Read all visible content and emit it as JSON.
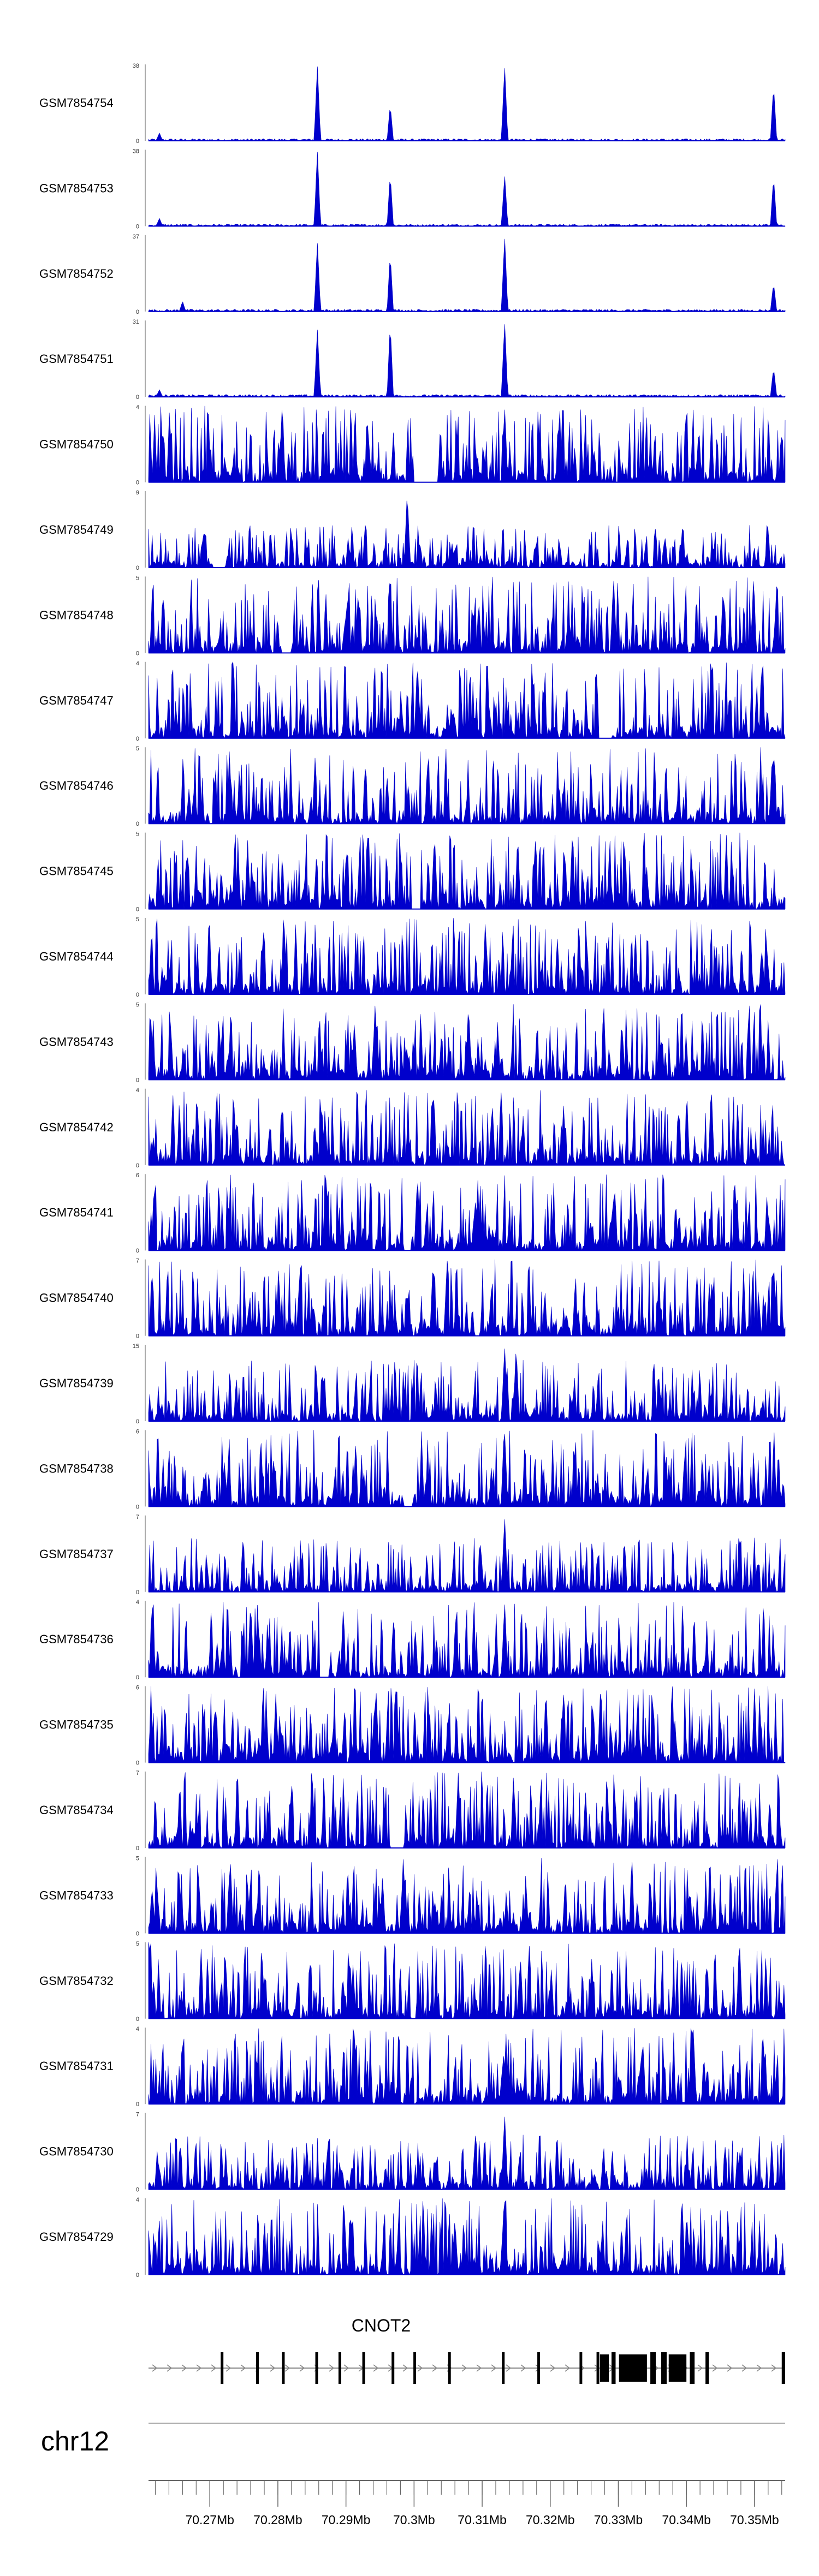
{
  "chart_data": {
    "type": "area",
    "title": "",
    "color": "#0000cc",
    "x_range_mb": [
      70.261,
      70.3545
    ],
    "tracks": [
      {
        "name": "GSM7854754",
        "ymax": 38,
        "ymin": 0,
        "peaks": [
          [
            70.2626,
            4
          ],
          [
            70.2858,
            38
          ],
          [
            70.2965,
            18
          ],
          [
            70.3133,
            38
          ],
          [
            70.3528,
            28
          ]
        ],
        "noise": 1.3,
        "gaps": []
      },
      {
        "name": "GSM7854753",
        "ymax": 38,
        "ymin": 0,
        "peaks": [
          [
            70.2626,
            4
          ],
          [
            70.2858,
            38
          ],
          [
            70.2965,
            26
          ],
          [
            70.3133,
            26
          ],
          [
            70.3528,
            25
          ]
        ],
        "noise": 1.3,
        "gaps": []
      },
      {
        "name": "GSM7854752",
        "ymax": 37,
        "ymin": 0,
        "peaks": [
          [
            70.266,
            5
          ],
          [
            70.2858,
            34
          ],
          [
            70.2965,
            28
          ],
          [
            70.3133,
            37
          ],
          [
            70.3528,
            14
          ]
        ],
        "noise": 1.4,
        "gaps": []
      },
      {
        "name": "GSM7854751",
        "ymax": 31,
        "ymin": 0,
        "peaks": [
          [
            70.2626,
            3
          ],
          [
            70.2858,
            28
          ],
          [
            70.2965,
            30
          ],
          [
            70.3133,
            31
          ],
          [
            70.3528,
            12
          ]
        ],
        "noise": 1.2,
        "gaps": []
      },
      {
        "name": "GSM7854750",
        "ymax": 4,
        "ymin": 0,
        "peaks": [
          [
            70.3133,
            4
          ]
        ],
        "noise": 4,
        "gaps": [
          [
            70.3,
            70.3035
          ]
        ]
      },
      {
        "name": "GSM7854749",
        "ymax": 9,
        "ymin": 0,
        "peaks": [
          [
            70.299,
            9
          ]
        ],
        "noise": 5,
        "gaps": [
          [
            70.2705,
            70.2722
          ]
        ]
      },
      {
        "name": "GSM7854748",
        "ymax": 5,
        "ymin": 0,
        "peaks": [
          [
            70.3293,
            5
          ]
        ],
        "noise": 5,
        "gaps": [
          [
            70.2805,
            70.282
          ]
        ]
      },
      {
        "name": "GSM7854747",
        "ymax": 4,
        "ymin": 0,
        "peaks": [
          [
            70.3005,
            4
          ]
        ],
        "noise": 4,
        "gaps": [
          [
            70.327,
            70.329
          ]
        ]
      },
      {
        "name": "GSM7854746",
        "ymax": 5,
        "ymin": 0,
        "peaks": [
          [
            70.3528,
            5
          ]
        ],
        "noise": 5,
        "gaps": []
      },
      {
        "name": "GSM7854745",
        "ymax": 5,
        "ymin": 0,
        "peaks": [
          [
            70.303,
            5
          ]
        ],
        "noise": 5,
        "gaps": [
          [
            70.2995,
            70.301
          ]
        ]
      },
      {
        "name": "GSM7854744",
        "ymax": 5,
        "ymin": 0,
        "peaks": [
          [
            70.26,
            5
          ]
        ],
        "noise": 5,
        "gaps": []
      },
      {
        "name": "GSM7854743",
        "ymax": 5,
        "ymin": 0,
        "peaks": [
          [
            70.308,
            5
          ]
        ],
        "noise": 5,
        "gaps": []
      },
      {
        "name": "GSM7854742",
        "ymax": 4,
        "ymin": 0,
        "peaks": [
          [
            70.3028,
            4
          ]
        ],
        "noise": 4,
        "gaps": []
      },
      {
        "name": "GSM7854741",
        "ymax": 6,
        "ymin": 0,
        "peaks": [
          [
            70.3005,
            6
          ]
        ],
        "noise": 6,
        "gaps": [
          [
            70.2985,
            70.2995
          ]
        ]
      },
      {
        "name": "GSM7854740",
        "ymax": 7,
        "ymin": 0,
        "peaks": [
          [
            70.3028,
            7
          ],
          [
            70.3528,
            7
          ]
        ],
        "noise": 7,
        "gaps": []
      },
      {
        "name": "GSM7854739",
        "ymax": 15,
        "ymin": 0,
        "peaks": [
          [
            70.3133,
            15
          ],
          [
            70.315,
            15
          ]
        ],
        "noise": 12,
        "gaps": []
      },
      {
        "name": "GSM7854738",
        "ymax": 6,
        "ymin": 0,
        "peaks": [
          [
            70.3133,
            6
          ]
        ],
        "noise": 6,
        "gaps": [
          [
            70.2985,
            70.2998
          ]
        ]
      },
      {
        "name": "GSM7854737",
        "ymax": 7,
        "ymin": 0,
        "peaks": [
          [
            70.3133,
            7
          ]
        ],
        "noise": 5,
        "gaps": []
      },
      {
        "name": "GSM7854736",
        "ymax": 4,
        "ymin": 0,
        "peaks": [
          [
            70.276,
            4
          ],
          [
            70.3133,
            4
          ]
        ],
        "noise": 4,
        "gaps": [
          [
            70.286,
            70.2875
          ]
        ]
      },
      {
        "name": "GSM7854735",
        "ymax": 6,
        "ymin": 0,
        "peaks": [
          [
            70.2944,
            6
          ]
        ],
        "noise": 6,
        "gaps": []
      },
      {
        "name": "GSM7854734",
        "ymax": 7,
        "ymin": 0,
        "peaks": [
          [
            70.3065,
            7
          ]
        ],
        "noise": 7,
        "gaps": [
          [
            70.2965,
            70.2985
          ]
        ]
      },
      {
        "name": "GSM7854733",
        "ymax": 5,
        "ymin": 0,
        "peaks": [
          [
            70.273,
            5
          ]
        ],
        "noise": 5,
        "gaps": []
      },
      {
        "name": "GSM7854732",
        "ymax": 5,
        "ymin": 0,
        "peaks": [
          [
            70.261,
            5
          ]
        ],
        "noise": 5,
        "gaps": [
          [
            70.2995,
            70.3003
          ]
        ]
      },
      {
        "name": "GSM7854731",
        "ymax": 4,
        "ymin": 0,
        "peaks": [
          [
            70.341,
            4
          ]
        ],
        "noise": 4,
        "gaps": []
      },
      {
        "name": "GSM7854730",
        "ymax": 7,
        "ymin": 0,
        "peaks": [
          [
            70.3133,
            7
          ]
        ],
        "noise": 5,
        "gaps": []
      },
      {
        "name": "GSM7854729",
        "ymax": 4,
        "ymin": 0,
        "peaks": [
          [
            70.3133,
            4
          ],
          [
            70.306,
            3
          ]
        ],
        "noise": 4,
        "gaps": []
      }
    ],
    "gene": {
      "name": "CNOT2",
      "strand": "+",
      "range_mb": [
        70.261,
        70.3545
      ],
      "exons": [
        [
          70.2716,
          70.272
        ],
        [
          70.2768,
          70.2772
        ],
        [
          70.2806,
          70.281
        ],
        [
          70.2855,
          70.2859
        ],
        [
          70.2889,
          70.2893
        ],
        [
          70.2924,
          70.2928
        ],
        [
          70.2967,
          70.2971
        ],
        [
          70.2999,
          70.3003
        ],
        [
          70.305,
          70.3054
        ],
        [
          70.3129,
          70.3133
        ],
        [
          70.3181,
          70.3185
        ],
        [
          70.3243,
          70.3247
        ],
        [
          70.3268,
          70.3272
        ],
        [
          70.3273,
          70.3286
        ],
        [
          70.329,
          70.3296
        ],
        [
          70.3301,
          70.3342
        ],
        [
          70.3347,
          70.3355
        ],
        [
          70.3363,
          70.3371
        ],
        [
          70.3374,
          70.34
        ],
        [
          70.3405,
          70.3412
        ],
        [
          70.3428,
          70.3433
        ],
        [
          70.354,
          70.3545
        ]
      ]
    },
    "chromosome": "chr12",
    "axis": {
      "ticks_mb": [
        70.27,
        70.28,
        70.29,
        70.3,
        70.31,
        70.32,
        70.33,
        70.34,
        70.35
      ],
      "tick_labels": [
        "70.27Mb",
        "70.28Mb",
        "70.29Mb",
        "70.3Mb",
        "70.31Mb",
        "70.32Mb",
        "70.33Mb",
        "70.34Mb",
        "70.35Mb"
      ],
      "minor_step_mb": 0.002
    }
  }
}
